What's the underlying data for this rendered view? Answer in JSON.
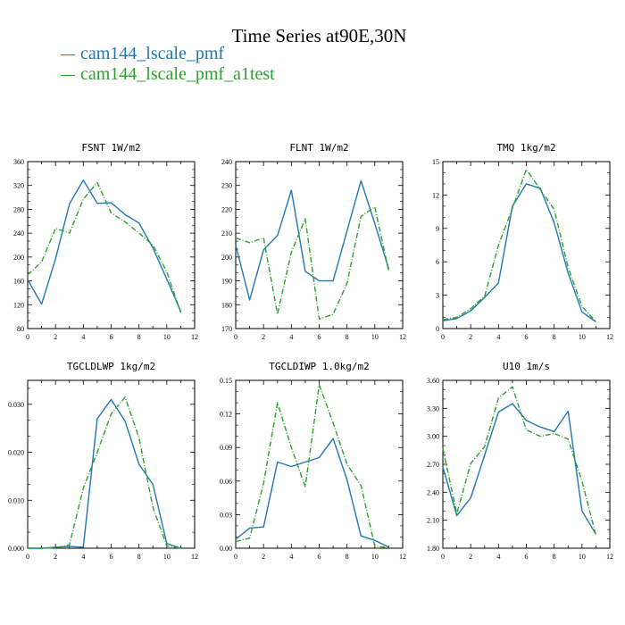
{
  "page_title": "Time Series at90E,30N",
  "legend": [
    {
      "label": "cam144_lscale_pmf",
      "color": "#1f77b4"
    },
    {
      "label": "cam144_lscale_pmf_a1test",
      "color": "#2ca02c"
    }
  ],
  "chart_data": [
    {
      "type": "line",
      "title": "FSNT   1W/m2",
      "x": [
        0,
        1,
        2,
        3,
        4,
        5,
        6,
        7,
        8,
        9,
        10,
        11
      ],
      "xlim": [
        0,
        12
      ],
      "xticks": [
        "0",
        "2",
        "4",
        "6",
        "8",
        "10",
        "12"
      ],
      "ylim": [
        80,
        360
      ],
      "yticks": [
        "80",
        "120",
        "160",
        "200",
        "240",
        "280",
        "320",
        "360"
      ],
      "series": [
        {
          "name": "cam144_lscale_pmf",
          "values": [
            162,
            121,
            197,
            289,
            329,
            290,
            291,
            271,
            257,
            215,
            163,
            109
          ]
        },
        {
          "name": "cam144_lscale_pmf_a1test",
          "values": [
            170,
            192,
            248,
            240,
            297,
            325,
            274,
            259,
            240,
            220,
            175,
            107
          ]
        }
      ]
    },
    {
      "type": "line",
      "title": "FLNT   1W/m2",
      "x": [
        0,
        1,
        2,
        3,
        4,
        5,
        6,
        7,
        8,
        9,
        10,
        11
      ],
      "xlim": [
        0,
        12
      ],
      "xticks": [
        "0",
        "2",
        "4",
        "6",
        "8",
        "10",
        "12"
      ],
      "ylim": [
        170,
        240
      ],
      "yticks": [
        "170",
        "180",
        "190",
        "200",
        "210",
        "220",
        "230",
        "240"
      ],
      "series": [
        {
          "name": "cam144_lscale_pmf",
          "values": [
            205,
            182,
            203,
            209,
            228,
            194,
            190,
            190,
            211,
            232,
            214,
            195
          ]
        },
        {
          "name": "cam144_lscale_pmf_a1test",
          "values": [
            208,
            206,
            208,
            176,
            202,
            216,
            174,
            176,
            189,
            217,
            221,
            194
          ]
        }
      ]
    },
    {
      "type": "line",
      "title": "TMQ   1kg/m2",
      "x": [
        0,
        1,
        2,
        3,
        4,
        5,
        6,
        7,
        8,
        9,
        10,
        11
      ],
      "xlim": [
        0,
        12
      ],
      "xticks": [
        "0",
        "2",
        "4",
        "6",
        "8",
        "10",
        "12"
      ],
      "ylim": [
        0,
        15
      ],
      "yticks": [
        "0",
        "3",
        "6",
        "9",
        "12",
        "15"
      ],
      "series": [
        {
          "name": "cam144_lscale_pmf",
          "values": [
            0.7,
            0.9,
            1.6,
            2.8,
            4.1,
            11.0,
            13.0,
            12.6,
            9.5,
            5.0,
            1.5,
            0.6
          ]
        },
        {
          "name": "cam144_lscale_pmf_a1test",
          "values": [
            0.8,
            1.0,
            1.8,
            2.9,
            7.5,
            10.8,
            14.3,
            12.5,
            10.7,
            5.5,
            2.0,
            0.6
          ]
        }
      ]
    },
    {
      "type": "line",
      "title": "TGCLDLWP   1kg/m2",
      "x": [
        0,
        1,
        2,
        3,
        4,
        5,
        6,
        7,
        8,
        9,
        10,
        11
      ],
      "xlim": [
        0,
        12
      ],
      "xticks": [
        "0",
        "2",
        "4",
        "6",
        "8",
        "10",
        "12"
      ],
      "ylim": [
        0,
        0.035
      ],
      "yticks": [
        "0.000",
        "0.010",
        "0.020",
        "0.030"
      ],
      "ytick_values": [
        0,
        0.01,
        0.02,
        0.03
      ],
      "series": [
        {
          "name": "cam144_lscale_pmf",
          "values": [
            0,
            0,
            0.0002,
            0.0004,
            0.0002,
            0.027,
            0.031,
            0.0265,
            0.0175,
            0.0133,
            0.001,
            0
          ]
        },
        {
          "name": "cam144_lscale_pmf_a1test",
          "values": [
            0,
            0,
            0.0001,
            0.0007,
            0.0125,
            0.02,
            0.028,
            0.0315,
            0.023,
            0.0085,
            0.0005,
            0
          ]
        }
      ]
    },
    {
      "type": "line",
      "title": "TGCLDIWP   1.0kg/m2",
      "x": [
        0,
        1,
        2,
        3,
        4,
        5,
        6,
        7,
        8,
        9,
        10,
        11
      ],
      "xlim": [
        0,
        12
      ],
      "xticks": [
        "0",
        "2",
        "4",
        "6",
        "8",
        "10",
        "12"
      ],
      "ylim": [
        0,
        0.15
      ],
      "yticks": [
        "0.00",
        "0.03",
        "0.06",
        "0.09",
        "0.12",
        "0.15"
      ],
      "series": [
        {
          "name": "cam144_lscale_pmf",
          "values": [
            0.008,
            0.018,
            0.019,
            0.077,
            0.073,
            0.077,
            0.081,
            0.098,
            0.061,
            0.011,
            0.007,
            0.001
          ]
        },
        {
          "name": "cam144_lscale_pmf_a1test",
          "values": [
            0.006,
            0.009,
            0.058,
            0.13,
            0.09,
            0.055,
            0.146,
            0.112,
            0.075,
            0.056,
            0.002,
            0.0005
          ]
        }
      ]
    },
    {
      "type": "line",
      "title": "U10   1m/s",
      "x": [
        0,
        1,
        2,
        3,
        4,
        5,
        6,
        7,
        8,
        9,
        10,
        11
      ],
      "xlim": [
        0,
        12
      ],
      "xticks": [
        "0",
        "2",
        "4",
        "6",
        "8",
        "10",
        "12"
      ],
      "ylim": [
        1.8,
        3.6
      ],
      "yticks": [
        "1.80",
        "2.10",
        "2.40",
        "2.70",
        "3.00",
        "3.30",
        "3.60"
      ],
      "series": [
        {
          "name": "cam144_lscale_pmf",
          "values": [
            2.67,
            2.15,
            2.34,
            2.8,
            3.26,
            3.35,
            3.17,
            3.1,
            3.05,
            3.27,
            2.2,
            1.95
          ]
        },
        {
          "name": "cam144_lscale_pmf_a1test",
          "values": [
            2.87,
            2.17,
            2.71,
            2.89,
            3.41,
            3.53,
            3.07,
            3.0,
            3.03,
            2.97,
            2.52,
            1.94
          ]
        }
      ]
    }
  ]
}
